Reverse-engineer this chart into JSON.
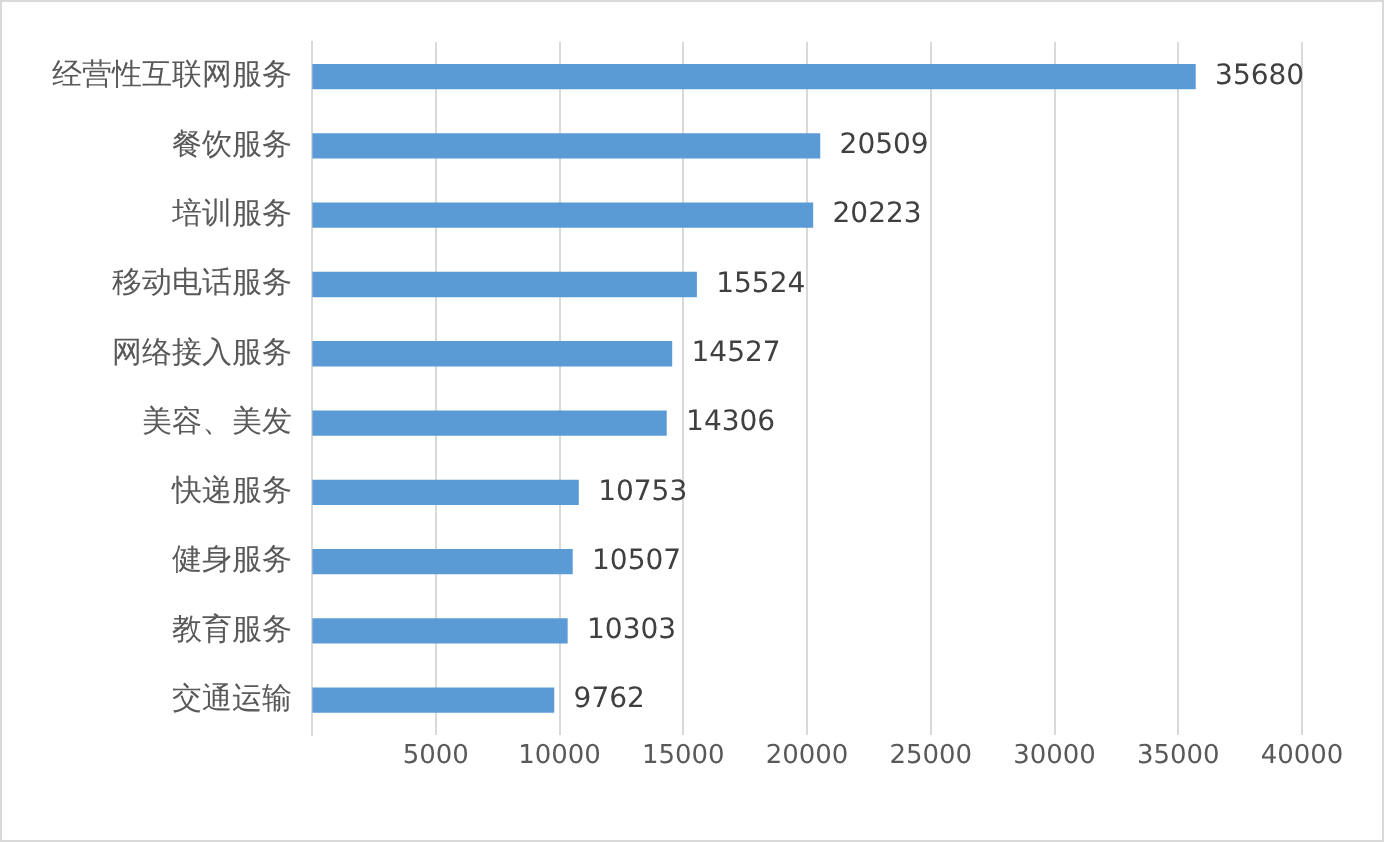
{
  "chart_data": {
    "type": "bar",
    "orientation": "horizontal",
    "categories": [
      "经营性互联网服务",
      "餐饮服务",
      "培训服务",
      "移动电话服务",
      "网络接入服务",
      "美容、美发",
      "快递服务",
      "健身服务",
      "教育服务",
      "交通运输"
    ],
    "values": [
      35680,
      20509,
      20223,
      15524,
      14527,
      14306,
      10753,
      10507,
      10303,
      9762
    ],
    "color": "#5b9bd5",
    "xlim": [
      0,
      40000
    ],
    "xticks": [
      {
        "value": 0,
        "label": null
      },
      5000,
      10000,
      15000,
      20000,
      25000,
      30000,
      35000,
      40000
    ],
    "grid": "x",
    "legend": false,
    "data_labels": true
  }
}
